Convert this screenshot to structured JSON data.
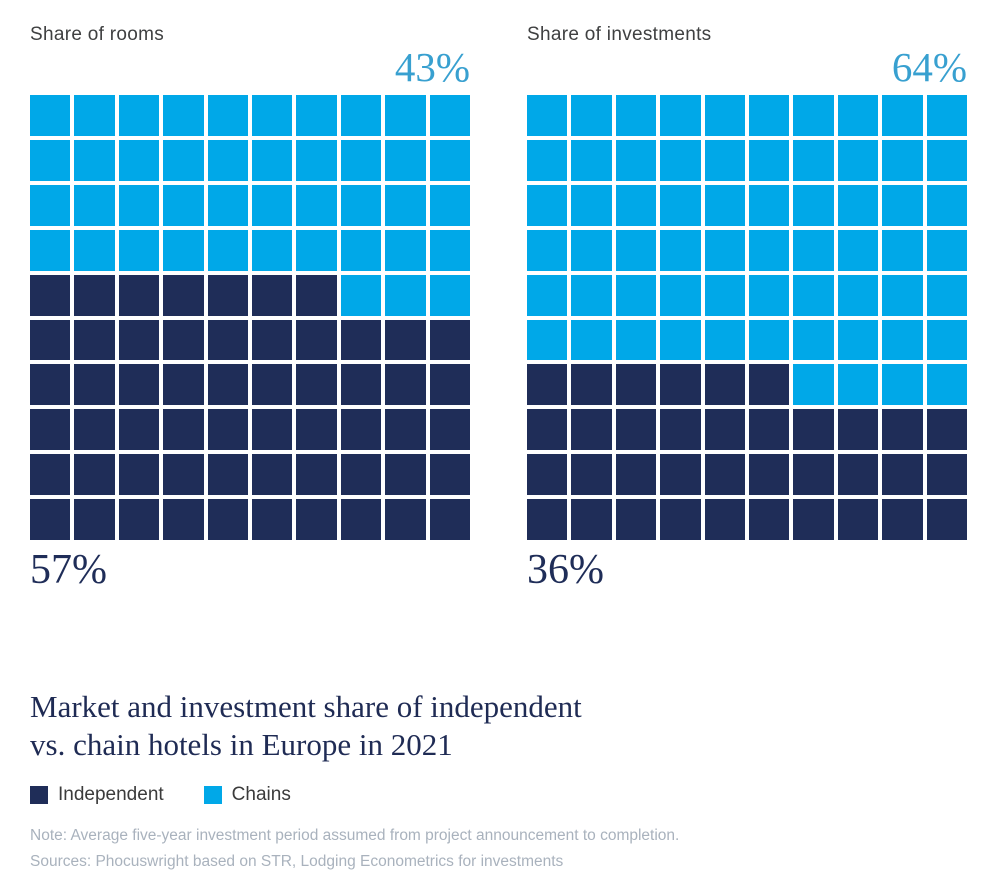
{
  "colors": {
    "independent": "#1f2d58",
    "chains": "#00a8e8",
    "chains_pct_text": "#38a0d0",
    "independent_pct_text": "#1f2d58",
    "title_text": "#1f2b54",
    "chart_label_text": "#3f4041",
    "legend_text": "#3b3b3b",
    "note_text": "#a9b2bd",
    "background": "#ffffff"
  },
  "charts": [
    {
      "label": "Share of rooms",
      "chains_pct": 43,
      "independent_pct": 57,
      "chains_display": "43%",
      "independent_display": "57%"
    },
    {
      "label": "Share of investments",
      "chains_pct": 64,
      "independent_pct": 36,
      "chains_display": "64%",
      "independent_display": "36%"
    }
  ],
  "title": "Market and investment share of independent\nvs. chain hotels in Europe in 2021",
  "legend": [
    {
      "label": "Independent",
      "color_key": "independent"
    },
    {
      "label": "Chains",
      "color_key": "chains"
    }
  ],
  "note": "Note: Average five-year investment period assumed from project announcement to completion.",
  "sources": "Sources: Phocuswright based on STR, Lodging Econometrics for investments",
  "chart_data": {
    "type": "waffle",
    "unit": "percent",
    "grid": {
      "rows": 10,
      "cols": 10,
      "cell_value": 1
    },
    "title": "Market and investment share of independent vs. chain hotels in Europe in 2021",
    "categories": [
      "Share of rooms",
      "Share of investments"
    ],
    "series": [
      {
        "name": "Independent",
        "values": [
          57,
          36
        ],
        "color": "#1f2d58"
      },
      {
        "name": "Chains",
        "values": [
          43,
          64
        ],
        "color": "#00a8e8"
      }
    ],
    "data_labels": {
      "chains": [
        "43%",
        "64%"
      ],
      "independent": [
        "57%",
        "36%"
      ]
    },
    "fill_rule": "chains fills full rows from top; partial row cells align right; independent fills remainder from bottom-left",
    "legend_position": "bottom-left",
    "note": "Note: Average five-year investment period assumed from project announcement to completion.",
    "sources": "Sources: Phocuswright based on STR, Lodging Econometrics for investments"
  }
}
